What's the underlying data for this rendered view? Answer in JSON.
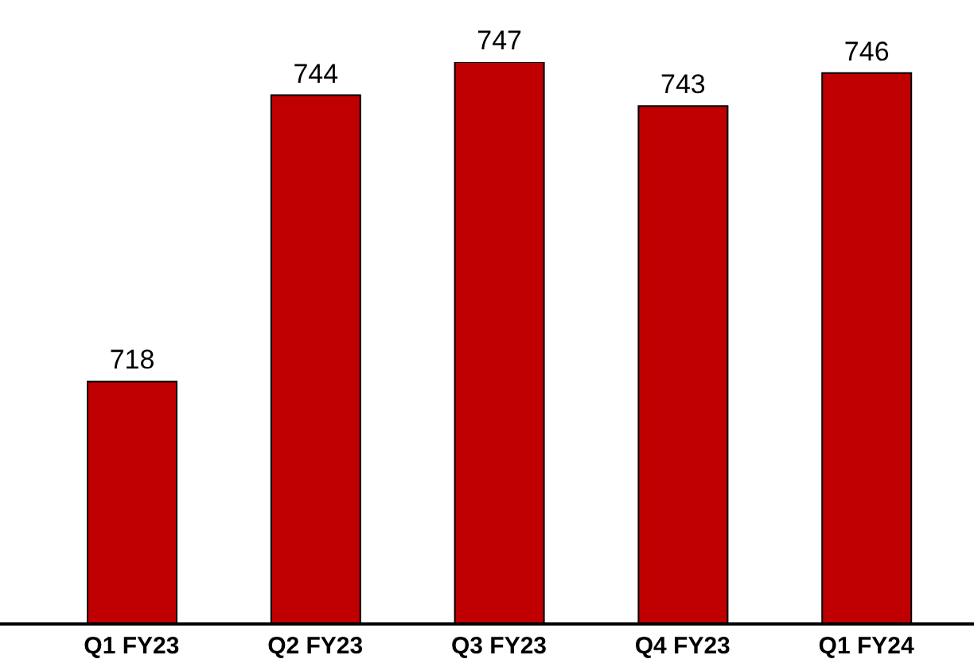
{
  "chart_data": {
    "type": "bar",
    "categories": [
      "Q1 FY23",
      "Q2 FY23",
      "Q3 FY23",
      "Q4 FY23",
      "Q1 FY24"
    ],
    "values": [
      718,
      744,
      747,
      743,
      746
    ],
    "color": "#c00000",
    "ylim": [
      696,
      747
    ],
    "data_labels": true,
    "tick_labels": "x"
  }
}
